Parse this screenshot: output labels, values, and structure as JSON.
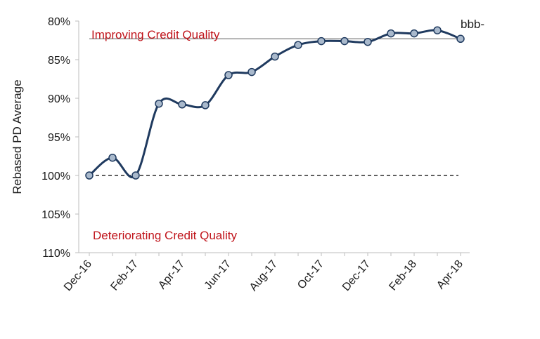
{
  "chart_data": {
    "type": "line",
    "ylabel": "Rebased PD Average",
    "xlabel": "",
    "y_inverted": true,
    "ylim": [
      80,
      110
    ],
    "y_ticks": [
      80,
      85,
      90,
      95,
      100,
      105,
      110
    ],
    "y_tick_labels": [
      "80%",
      "85%",
      "90%",
      "95%",
      "100%",
      "105%",
      "110%"
    ],
    "x_tick_labels": [
      "Dec-16",
      "Feb-17",
      "Apr-17",
      "Jun-17",
      "Aug-17",
      "Oct-17",
      "Dec-17",
      "Feb-18",
      "Apr-18"
    ],
    "x": [
      "Dec-16",
      "Jan-17",
      "Feb-17",
      "Mar-17",
      "Apr-17",
      "May-17",
      "Jun-17",
      "Jul-17",
      "Aug-17",
      "Sep-17",
      "Oct-17",
      "Nov-17",
      "Dec-17",
      "Jan-18",
      "Feb-18",
      "Mar-18",
      "Apr-18"
    ],
    "series": [
      {
        "name": "bbb-",
        "color": "#1f3a5f",
        "marker_fill": "#a9b9cc",
        "values": [
          100.0,
          97.7,
          100.0,
          90.7,
          90.8,
          90.9,
          87.0,
          86.6,
          84.6,
          83.1,
          82.6,
          82.6,
          82.7,
          81.6,
          81.6,
          81.2,
          82.3
        ]
      }
    ],
    "reference_lines": [
      {
        "value": 100,
        "style": "dashed",
        "color": "#000000"
      },
      {
        "value": 82.3,
        "style": "solid",
        "color": "#888888"
      }
    ],
    "annotations": {
      "top": {
        "text": "Improving Credit Quality",
        "color": "#c0141b"
      },
      "bottom": {
        "text": "Deteriorating Credit Quality",
        "color": "#c0141b"
      }
    },
    "grid": false
  }
}
